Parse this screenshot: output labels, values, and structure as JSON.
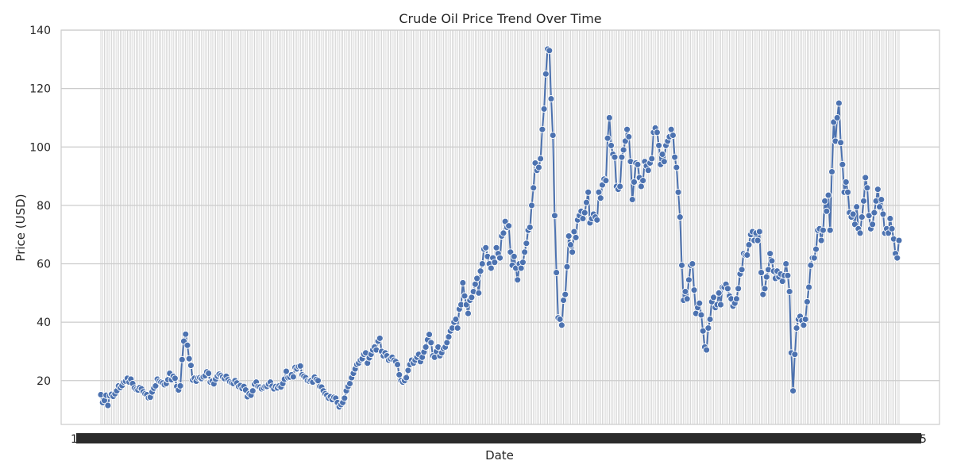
{
  "chart_data": {
    "type": "line",
    "title": "Crude Oil Price Trend Over Time",
    "xlabel": "Date",
    "ylabel": "Price (USD)",
    "ylim": [
      5,
      140
    ],
    "yticks": [
      20,
      40,
      60,
      80,
      100,
      120,
      140
    ],
    "grid": true,
    "legend": "none",
    "colors": {
      "line": "#4c72b0",
      "marker_edge": "#ffffff",
      "grid": "#cccccc",
      "frame": "#cccccc",
      "text": "#262626"
    },
    "x_tick_labels_note": "Date tick labels are printed but overlap into an illegible dark band",
    "series": [
      {
        "values": [
          15.2,
          12.5,
          13.2,
          15.0,
          11.5,
          14.8,
          15.3,
          14.6,
          15.5,
          16.5,
          18.2,
          17.6,
          18.3,
          19.5,
          19.8,
          20.8,
          19.5,
          20.5,
          19.0,
          17.5,
          17.0,
          16.8,
          17.6,
          17.2,
          16.2,
          15.5,
          15.2,
          14.1,
          14.3,
          16.1,
          17.4,
          18.2,
          20.5,
          19.8,
          19.5,
          19.2,
          18.6,
          19.0,
          20.3,
          22.5,
          20.3,
          21.5,
          20.8,
          18.0,
          16.8,
          18.2,
          27.2,
          33.5,
          35.9,
          32.1,
          27.5,
          25.2,
          20.2,
          20.8,
          19.8,
          20.9,
          21.0,
          20.7,
          21.3,
          21.7,
          23.0,
          22.5,
          19.5,
          19.8,
          18.9,
          20.5,
          21.5,
          22.2,
          21.8,
          21.3,
          20.7,
          21.5,
          20.3,
          19.6,
          19.2,
          19.0,
          20.0,
          19.2,
          18.0,
          18.3,
          17.3,
          18.0,
          16.8,
          14.5,
          15.5,
          15.0,
          16.5,
          18.8,
          19.5,
          18.0,
          17.8,
          17.2,
          17.5,
          18.0,
          18.0,
          18.8,
          19.5,
          18.1,
          17.2,
          18.0,
          17.5,
          18.2,
          17.8,
          19.0,
          20.5,
          23.2,
          21.0,
          21.2,
          22.0,
          21.3,
          24.5,
          24.0,
          24.8,
          25.0,
          22.0,
          21.5,
          21.0,
          20.0,
          19.8,
          20.0,
          19.5,
          21.2,
          20.4,
          20.0,
          18.0,
          17.8,
          16.5,
          15.5,
          15.0,
          14.0,
          14.5,
          13.5,
          14.3,
          14.0,
          12.5,
          11.0,
          11.8,
          12.5,
          14.0,
          16.5,
          18.0,
          19.0,
          21.0,
          22.5,
          24.0,
          25.5,
          26.0,
          27.0,
          27.5,
          29.0,
          29.5,
          26.0,
          27.8,
          29.0,
          30.5,
          31.5,
          30.5,
          33.5,
          34.5,
          30.0,
          28.5,
          29.5,
          28.5,
          27.0,
          27.5,
          28.0,
          27.0,
          26.5,
          25.5,
          22.0,
          20.0,
          19.5,
          20.0,
          21.0,
          23.5,
          25.5,
          27.0,
          26.0,
          27.0,
          28.0,
          29.0,
          26.5,
          28.0,
          29.8,
          31.5,
          34.0,
          35.8,
          33.0,
          28.5,
          28.0,
          30.0,
          31.5,
          28.5,
          29.5,
          31.0,
          31.5,
          33.0,
          35.0,
          37.0,
          38.0,
          40.0,
          41.0,
          38.0,
          44.5,
          46.0,
          53.5,
          49.0,
          46.0,
          43.0,
          47.5,
          48.5,
          50.5,
          53.0,
          55.0,
          50.0,
          57.5,
          60.0,
          65.0,
          65.5,
          62.5,
          60.0,
          58.5,
          62.0,
          60.5,
          65.5,
          63.5,
          62.0,
          69.5,
          70.5,
          74.5,
          72.5,
          73.0,
          64.0,
          59.5,
          62.5,
          58.5,
          54.5,
          60.0,
          58.5,
          60.5,
          64.0,
          67.0,
          71.5,
          72.5,
          80.0,
          86.0,
          94.5,
          92.0,
          93.0,
          96.0,
          106.0,
          113.0,
          125.0,
          133.5,
          133.0,
          116.5,
          104.0,
          76.5,
          57.0,
          41.5,
          41.0,
          39.0,
          47.5,
          49.5,
          59.0,
          69.5,
          66.5,
          64.0,
          71.0,
          69.0,
          75.0,
          76.5,
          78.0,
          75.5,
          77.5,
          81.0,
          84.5,
          74.0,
          75.5,
          77.0,
          76.0,
          75.0,
          84.5,
          82.5,
          87.0,
          89.0,
          88.5,
          103.0,
          110.0,
          100.5,
          97.5,
          96.5,
          86.5,
          85.5,
          86.5,
          96.5,
          99.0,
          102.0,
          106.0,
          103.5,
          95.0,
          82.0,
          88.0,
          94.5,
          94.0,
          89.5,
          86.5,
          88.5,
          95.0,
          93.5,
          92.0,
          94.5,
          96.0,
          105.0,
          106.5,
          105.0,
          100.5,
          94.0,
          97.5,
          95.0,
          100.5,
          102.0,
          103.5,
          106.0,
          104.0,
          96.5,
          93.0,
          84.5,
          76.0,
          59.5,
          47.5,
          50.5,
          48.0,
          54.5,
          59.5,
          60.0,
          51.0,
          43.0,
          45.0,
          46.5,
          42.5,
          37.0,
          31.5,
          30.5,
          38.0,
          41.0,
          47.0,
          48.5,
          45.0,
          46.0,
          50.0,
          46.0,
          52.0,
          52.0,
          53.0,
          51.5,
          49.0,
          48.0,
          45.5,
          46.5,
          48.0,
          51.5,
          56.5,
          58.0,
          63.5,
          63.0,
          63.0,
          66.5,
          70.0,
          71.0,
          68.0,
          70.5,
          68.0,
          71.0,
          57.0,
          49.5,
          51.5,
          55.5,
          58.0,
          63.5,
          61.0,
          57.5,
          55.0,
          57.5,
          55.5,
          56.5,
          54.0,
          56.0,
          60.0,
          56.0,
          50.5,
          29.5,
          16.5,
          29.0,
          38.0,
          41.0,
          42.0,
          40.5,
          39.0,
          41.0,
          47.0,
          52.0,
          59.5,
          62.0,
          62.0,
          65.0,
          71.5,
          72.0,
          68.0,
          71.5,
          81.5,
          78.0,
          83.5,
          71.5,
          91.5,
          108.5,
          102.0,
          110.0,
          115.0,
          101.5,
          94.0,
          84.5,
          88.0,
          84.5,
          77.5,
          76.0,
          77.0,
          73.5,
          79.5,
          72.0,
          70.5,
          76.0,
          81.5,
          89.5,
          86.0,
          76.5,
          72.0,
          73.5,
          77.5,
          81.5,
          85.5,
          79.5,
          82.0,
          77.0,
          70.5,
          72.0,
          70.5,
          75.5,
          72.0,
          68.5,
          63.5,
          62.0,
          68.0
        ]
      }
    ]
  }
}
